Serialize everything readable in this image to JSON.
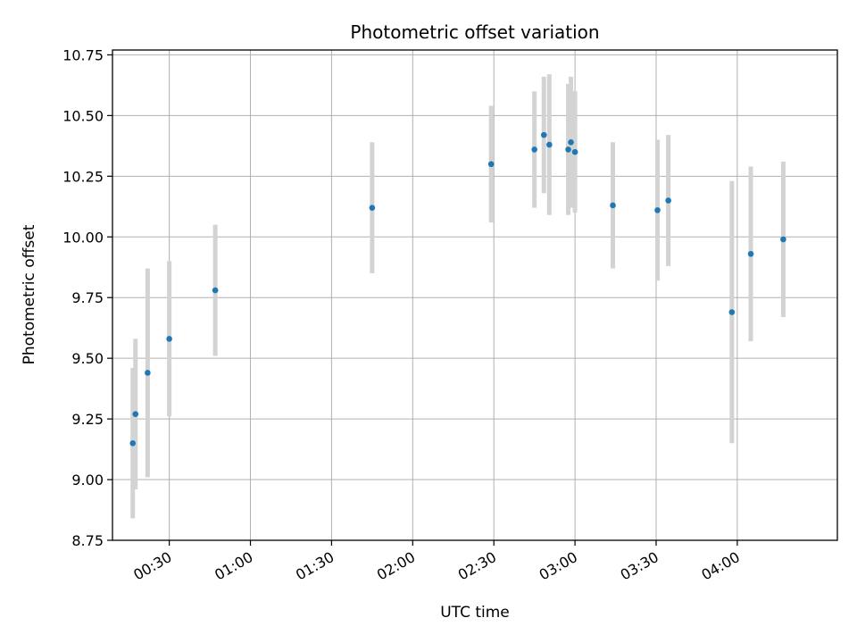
{
  "chart_data": {
    "type": "scatter",
    "title": "Photometric offset variation",
    "xlabel": "UTC time",
    "ylabel": "Photometric offset",
    "x_unit": "UTC",
    "xlim": [
      "00:09",
      "04:37"
    ],
    "ylim": [
      8.75,
      10.77
    ],
    "x_ticks": [
      "00:30",
      "01:00",
      "01:30",
      "02:00",
      "02:30",
      "03:00",
      "03:30",
      "04:00"
    ],
    "y_ticks": [
      "8.75",
      "9.00",
      "9.25",
      "9.50",
      "9.75",
      "10.00",
      "10.25",
      "10.50",
      "10.75"
    ],
    "grid": true,
    "colors": {
      "points": "#1f77b4",
      "error_bars": "#d3d3d3",
      "grid": "#b0b0b0"
    },
    "series": [
      {
        "points": [
          {
            "x": "00:16:30",
            "y": 9.15,
            "err": 0.31
          },
          {
            "x": "00:17:30",
            "y": 9.27,
            "err": 0.31
          },
          {
            "x": "00:22:00",
            "y": 9.44,
            "err": 0.43
          },
          {
            "x": "00:30:00",
            "y": 9.58,
            "err": 0.32
          },
          {
            "x": "00:47:00",
            "y": 9.78,
            "err": 0.27
          },
          {
            "x": "01:45:00",
            "y": 10.12,
            "err": 0.27
          },
          {
            "x": "02:29:00",
            "y": 10.3,
            "err": 0.24
          },
          {
            "x": "02:45:00",
            "y": 10.36,
            "err": 0.24
          },
          {
            "x": "02:48:30",
            "y": 10.42,
            "err": 0.24
          },
          {
            "x": "02:50:30",
            "y": 10.38,
            "err": 0.29
          },
          {
            "x": "02:57:30",
            "y": 10.36,
            "err": 0.27
          },
          {
            "x": "02:58:30",
            "y": 10.39,
            "err": 0.27
          },
          {
            "x": "03:00:00",
            "y": 10.35,
            "err": 0.25
          },
          {
            "x": "03:14:00",
            "y": 10.13,
            "err": 0.26
          },
          {
            "x": "03:30:30",
            "y": 10.11,
            "err": 0.29
          },
          {
            "x": "03:34:30",
            "y": 10.15,
            "err": 0.27
          },
          {
            "x": "03:58:00",
            "y": 9.69,
            "err": 0.54
          },
          {
            "x": "04:05:00",
            "y": 9.93,
            "err": 0.36
          },
          {
            "x": "04:17:00",
            "y": 9.99,
            "err": 0.32
          }
        ]
      }
    ]
  }
}
